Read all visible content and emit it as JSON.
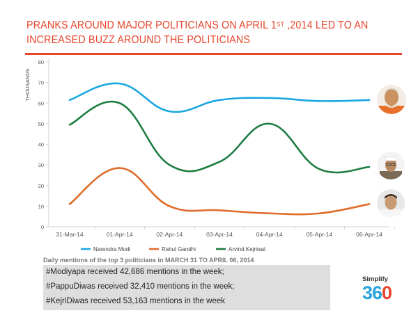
{
  "page": {
    "title_part1": "PRANKS AROUND MAJOR POLITICIANS ON APRIL 1",
    "title_sup": "ST",
    "title_part2": " ,2014 LED TO AN INCREASED BUZZ AROUND THE POLITICIANS",
    "caption": "Daily mentions of the top 3 politicians in MARCH 31 TO APRIL 06, 2014"
  },
  "stats": [
    {
      "tag": "#Modiyapa",
      "mid": " received ",
      "count": "42,686",
      "tail": " mentions in the week;"
    },
    {
      "tag": "#PappuDiwas",
      "mid": " received ",
      "count": "32,410",
      "tail": " mentions in the week;"
    },
    {
      "tag": "#KejriDiwas",
      "mid": " received ",
      "count": "53,163",
      "tail": " mentions in the week"
    }
  ],
  "logo": {
    "top": "Simplify",
    "num_part": "36",
    "o_part": "0"
  },
  "photos": [
    {
      "icon": "modi-photo-icon",
      "series": "Narendra Modi"
    },
    {
      "icon": "kejriwal-photo-icon",
      "series": "Arvind Kejriwal"
    },
    {
      "icon": "gandhi-photo-icon",
      "series": "Rahul Gandhi"
    }
  ],
  "chart_data": {
    "type": "line",
    "title": "",
    "xlabel": "",
    "ylabel": "THOUSANDS",
    "x": [
      "31-Mar-14",
      "01-Apr-14",
      "02-Apr-14",
      "03-Apr-14",
      "04-Apr-14",
      "05-Apr-14",
      "06-Apr-14"
    ],
    "yticks": [
      0,
      10,
      20,
      30,
      40,
      50,
      60,
      70,
      80
    ],
    "ylim": [
      0,
      80
    ],
    "grid": false,
    "legend_position": "bottom",
    "series": [
      {
        "name": "Narendra Modi",
        "color": "#1aa7e0",
        "values": [
          61.5,
          69.5,
          56,
          61.5,
          62.5,
          61,
          61.5
        ]
      },
      {
        "name": "Rahul Gandhi",
        "color": "#e06c2a",
        "values": [
          11,
          28.5,
          10,
          8,
          6.5,
          6.5,
          11
        ]
      },
      {
        "name": "Arvind Kejriwal",
        "color": "#1d7d42",
        "values": [
          49.5,
          60,
          30,
          31.5,
          50,
          28,
          29
        ]
      }
    ]
  }
}
